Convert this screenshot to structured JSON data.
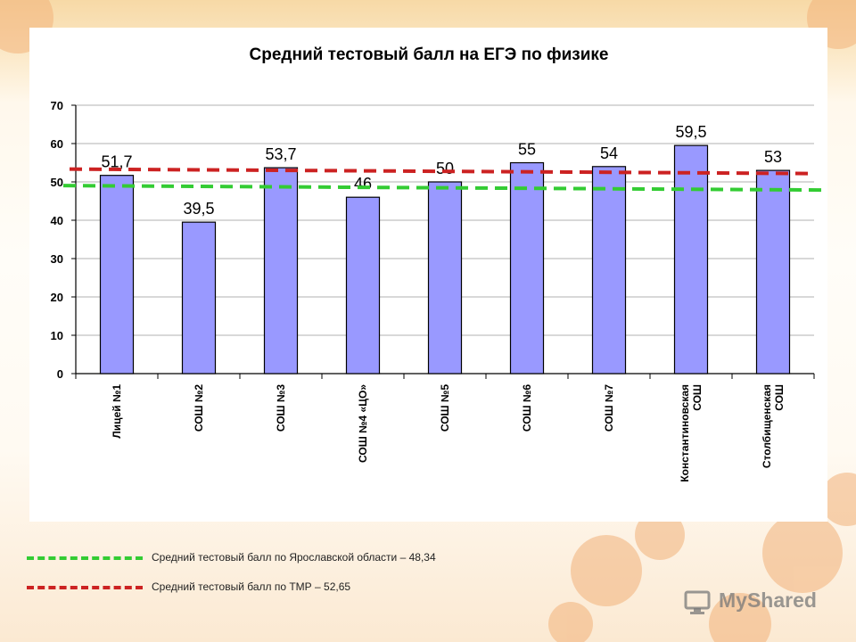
{
  "chart_data": {
    "type": "bar",
    "title": "Средний тестовый балл на ЕГЭ по физике",
    "categories": [
      [
        "Лицей №1"
      ],
      [
        "СОШ №2"
      ],
      [
        "СОШ №3"
      ],
      [
        "СОШ №4 «ЦО»"
      ],
      [
        "СОШ №5"
      ],
      [
        "СОШ №6"
      ],
      [
        "СОШ №7"
      ],
      [
        "Константиновская",
        "СОШ"
      ],
      [
        "Столбищенская",
        "СОШ"
      ]
    ],
    "values": [
      51.7,
      39.5,
      53.7,
      46,
      50,
      55,
      54,
      59.5,
      53
    ],
    "value_labels": [
      "51,7",
      "39,5",
      "53,7",
      "46",
      "50",
      "55",
      "54",
      "59,5",
      "53"
    ],
    "yticks": [
      "0",
      "10",
      "20",
      "30",
      "40",
      "50",
      "60",
      "70"
    ],
    "ylim": [
      0,
      70
    ],
    "xlabel": "",
    "ylabel": "",
    "bar_color": "#9999ff",
    "reference_lines": [
      {
        "name": "Средний тестовый балл по Ярославской области – 48,34",
        "value": 48.34,
        "color": "#33cc33"
      },
      {
        "name": "Средний тестовый балл по ТМР – 52,65",
        "value": 52.65,
        "color": "#cc2222"
      }
    ]
  },
  "legend": {
    "items": [
      {
        "label": "Средний тестовый балл по Ярославской области – 48,34",
        "color": "#33cc33"
      },
      {
        "label": "Средний тестовый балл по ТМР – 52,65",
        "color": "#cc2222"
      }
    ]
  },
  "watermark": {
    "text": "MyShared"
  }
}
